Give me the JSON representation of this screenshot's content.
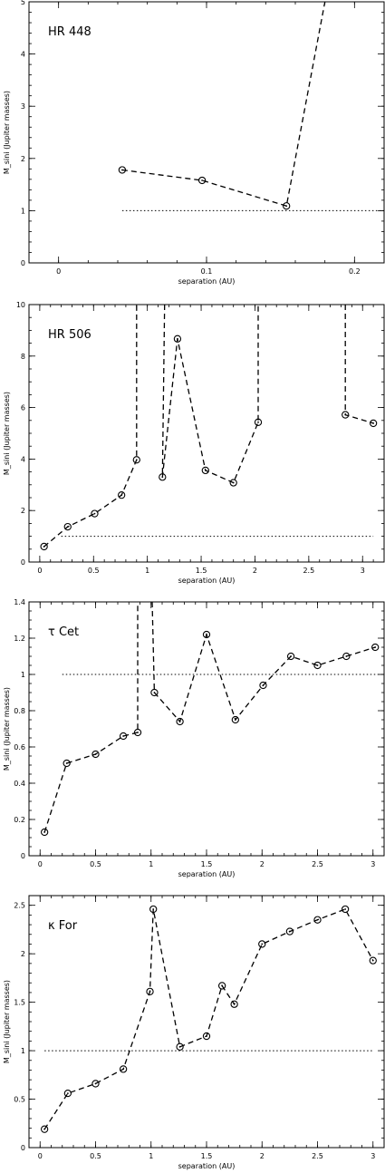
{
  "chart_data": [
    {
      "type": "line",
      "title": "HR 448",
      "xlabel": "separation (AU)",
      "ylabel": "M_sini (Jupiter masses)",
      "xlim": [
        -0.02,
        0.22
      ],
      "ylim": [
        0,
        5
      ],
      "xticks": [
        0,
        0.1,
        0.2
      ],
      "xtick_labels": [
        "0",
        "0.1",
        "0.2"
      ],
      "yticks": [
        0,
        1,
        2,
        3,
        4,
        5
      ],
      "ytick_labels": [
        "0",
        "1",
        "2",
        "3",
        "4",
        "5"
      ],
      "x_minor_step": 0.02,
      "y_minor_step": 0.2,
      "segments": [
        [
          [
            0.043,
            1.78
          ],
          [
            0.097,
            1.58
          ],
          [
            0.154,
            1.09
          ],
          [
            0.18,
            5.0
          ]
        ]
      ],
      "markers": [
        [
          0.043,
          1.78
        ],
        [
          0.097,
          1.58
        ],
        [
          0.154,
          1.09
        ]
      ],
      "reference": {
        "y": 1.0,
        "x": [
          0.043,
          0.22
        ]
      }
    },
    {
      "type": "line",
      "title": "HR 506",
      "xlabel": "separation (AU)",
      "ylabel": "M_sini (Jupiter masses)",
      "xlim": [
        -0.1,
        3.2
      ],
      "ylim": [
        0,
        10
      ],
      "xticks": [
        0,
        0.5,
        1,
        1.5,
        2,
        2.5,
        3
      ],
      "xtick_labels": [
        "0",
        "0.5",
        "1",
        "1.5",
        "2",
        "2.5",
        "3"
      ],
      "yticks": [
        0,
        2,
        4,
        6,
        8,
        10
      ],
      "ytick_labels": [
        "0",
        "2",
        "4",
        "6",
        "8",
        "10"
      ],
      "x_minor_step": 0.1,
      "y_minor_step": 0.5,
      "segments": [
        [
          [
            0.04,
            0.6
          ],
          [
            0.26,
            1.37
          ],
          [
            0.51,
            1.88
          ],
          [
            0.76,
            2.6
          ],
          [
            0.9,
            3.97
          ],
          [
            0.9,
            10
          ]
        ],
        [
          [
            1.16,
            10
          ],
          [
            1.14,
            3.3
          ],
          [
            1.28,
            8.67
          ],
          [
            1.54,
            3.56
          ],
          [
            1.8,
            3.08
          ],
          [
            2.03,
            5.43
          ],
          [
            2.03,
            10
          ]
        ],
        [
          [
            2.84,
            10
          ],
          [
            2.84,
            5.72
          ],
          [
            3.1,
            5.39
          ]
        ]
      ],
      "markers": [
        [
          0.04,
          0.6
        ],
        [
          0.26,
          1.37
        ],
        [
          0.51,
          1.88
        ],
        [
          0.76,
          2.6
        ],
        [
          0.9,
          3.97
        ],
        [
          1.14,
          3.3
        ],
        [
          1.28,
          8.67
        ],
        [
          1.54,
          3.56
        ],
        [
          1.8,
          3.08
        ],
        [
          2.03,
          5.43
        ],
        [
          2.84,
          5.72
        ],
        [
          3.1,
          5.39
        ]
      ],
      "reference": {
        "y": 1.0,
        "x": [
          0.2,
          3.1
        ]
      }
    },
    {
      "type": "line",
      "title": "τ Cet",
      "xlabel": "separation (AU)",
      "ylabel": "M_sini (Jupiter masses)",
      "xlim": [
        -0.1,
        3.1
      ],
      "ylim": [
        0,
        1.4
      ],
      "xticks": [
        0,
        0.5,
        1,
        1.5,
        2,
        2.5,
        3
      ],
      "xtick_labels": [
        "0",
        "0.5",
        "1",
        "1.5",
        "2",
        "2.5",
        "3"
      ],
      "yticks": [
        0,
        0.2,
        0.4,
        0.6,
        0.8,
        1,
        1.2,
        1.4
      ],
      "ytick_labels": [
        "0",
        "0.2",
        "0.4",
        "0.6",
        "0.8",
        "1",
        "1.2",
        "1.4"
      ],
      "x_minor_step": 0.1,
      "y_minor_step": 0.05,
      "segments": [
        [
          [
            0.04,
            0.13
          ],
          [
            0.24,
            0.51
          ],
          [
            0.5,
            0.56
          ],
          [
            0.75,
            0.66
          ],
          [
            0.88,
            0.68
          ],
          [
            0.88,
            1.4
          ]
        ],
        [
          [
            1.01,
            1.4
          ],
          [
            1.03,
            0.9
          ],
          [
            1.26,
            0.74
          ],
          [
            1.5,
            1.22
          ],
          [
            1.76,
            0.75
          ],
          [
            2.01,
            0.94
          ],
          [
            2.26,
            1.1
          ],
          [
            2.5,
            1.05
          ],
          [
            2.76,
            1.1
          ],
          [
            3.02,
            1.15
          ]
        ]
      ],
      "markers": [
        [
          0.04,
          0.13
        ],
        [
          0.24,
          0.51
        ],
        [
          0.5,
          0.56
        ],
        [
          0.75,
          0.66
        ],
        [
          0.88,
          0.68
        ],
        [
          1.03,
          0.9
        ],
        [
          1.26,
          0.74
        ],
        [
          1.5,
          1.22
        ],
        [
          1.76,
          0.75
        ],
        [
          2.01,
          0.94
        ],
        [
          2.26,
          1.1
        ],
        [
          2.5,
          1.05
        ],
        [
          2.76,
          1.1
        ],
        [
          3.02,
          1.15
        ]
      ],
      "reference": {
        "y": 1.0,
        "x": [
          0.2,
          3.1
        ]
      }
    },
    {
      "type": "line",
      "title": "κ For",
      "xlabel": "separation (AU)",
      "ylabel": "M_sini (Jupiter masses)",
      "xlim": [
        -0.1,
        3.1
      ],
      "ylim": [
        0,
        2.6
      ],
      "xticks": [
        0,
        0.5,
        1,
        1.5,
        2,
        2.5,
        3
      ],
      "xtick_labels": [
        "0",
        "0.5",
        "1",
        "1.5",
        "2",
        "2.5",
        "3"
      ],
      "yticks": [
        0,
        0.5,
        1,
        1.5,
        2,
        2.5
      ],
      "ytick_labels": [
        "0",
        "0.5",
        "1",
        "1.5",
        "2",
        "2.5"
      ],
      "x_minor_step": 0.1,
      "y_minor_step": 0.1,
      "segments": [
        [
          [
            0.04,
            0.19
          ],
          [
            0.25,
            0.56
          ],
          [
            0.5,
            0.66
          ],
          [
            0.75,
            0.81
          ],
          [
            0.99,
            1.61
          ],
          [
            1.02,
            2.46
          ],
          [
            1.26,
            1.04
          ],
          [
            1.5,
            1.15
          ],
          [
            1.64,
            1.67
          ],
          [
            1.75,
            1.48
          ],
          [
            2.0,
            2.1
          ],
          [
            2.25,
            2.23
          ],
          [
            2.5,
            2.35
          ],
          [
            2.75,
            2.46
          ],
          [
            3.0,
            1.93
          ]
        ]
      ],
      "markers": [
        [
          0.04,
          0.19
        ],
        [
          0.25,
          0.56
        ],
        [
          0.5,
          0.66
        ],
        [
          0.75,
          0.81
        ],
        [
          0.99,
          1.61
        ],
        [
          1.02,
          2.46
        ],
        [
          1.26,
          1.04
        ],
        [
          1.5,
          1.15
        ],
        [
          1.64,
          1.67
        ],
        [
          1.75,
          1.48
        ],
        [
          2.0,
          2.1
        ],
        [
          2.25,
          2.23
        ],
        [
          2.5,
          2.35
        ],
        [
          2.75,
          2.46
        ],
        [
          3.0,
          1.93
        ]
      ],
      "reference": {
        "y": 1.0,
        "x": [
          0.04,
          3.0
        ]
      }
    }
  ]
}
